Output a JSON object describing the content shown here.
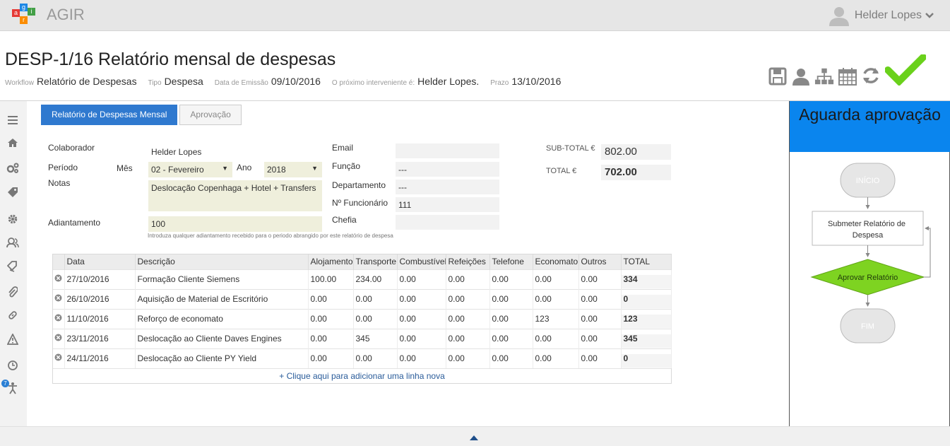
{
  "app": {
    "name": "AGIR",
    "logo_letters": [
      "a",
      "g",
      "i",
      "r"
    ]
  },
  "user": {
    "name": "Helder Lopes"
  },
  "document": {
    "title": "DESP-1/16 Relatório mensal de despesas",
    "meta": {
      "workflow_label": "Workflow",
      "workflow_value": "Relatório de Despesas",
      "tipo_label": "Tipo",
      "tipo_value": "Despesa",
      "emissao_label": "Data de Emissão",
      "emissao_value": "09/10/2016",
      "proximo_label": "O próximo interveniente é:",
      "proximo_value": "Helder Lopes.",
      "prazo_label": "Prazo",
      "prazo_value": "13/10/2016"
    }
  },
  "toolbar": {
    "icons": [
      "save-icon",
      "user-icon",
      "org-chart-icon",
      "calendar-icon",
      "refresh-icon",
      "approve-check-icon"
    ]
  },
  "sidebar": {
    "items": [
      "menu-icon",
      "home-icon",
      "cogs-icon",
      "tag-icon",
      "gear-icon",
      "users-icon",
      "tags-icon",
      "paperclip-icon",
      "link-icon",
      "warning-icon",
      "clock-icon",
      "accessibility-icon"
    ],
    "badge": "7"
  },
  "tabs": [
    {
      "label": "Relatório de Despesas Mensal",
      "active": true
    },
    {
      "label": "Aprovação",
      "active": false
    }
  ],
  "form": {
    "colaborador_label": "Colaborador",
    "colaborador_value": "Helder Lopes",
    "periodo_label": "Período",
    "mes_label": "Mês",
    "mes_value": "02 - Fevereiro",
    "ano_label": "Ano",
    "ano_value": "2018",
    "notas_label": "Notas",
    "notas_value": "Deslocação Copenhaga + Hotel + Transfers",
    "adiantamento_label": "Adiantamento",
    "adiantamento_value": "100",
    "adiantamento_hint": "Introduza qualquer adiantamento recebido para o periodo abrangido por este relatório de despesa",
    "email_label": "Email",
    "email_value": "",
    "funcao_label": "Função",
    "funcao_value": "---",
    "departamento_label": "Departamento",
    "departamento_value": "---",
    "funcionario_label": "Nº Funcionário",
    "funcionario_value": "111",
    "chefia_label": "Chefia",
    "chefia_value": ""
  },
  "totals": {
    "subtotal_label": "SUB-TOTAL €",
    "subtotal_value": "802.00",
    "total_label": "TOTAL €",
    "total_value": "702.00"
  },
  "expenses": {
    "columns": [
      "Data",
      "Descrição",
      "Alojamento",
      "Transporte",
      "Combustível",
      "Refeições",
      "Telefone",
      "Economato",
      "Outros",
      "TOTAL"
    ],
    "rows": [
      [
        "27/10/2016",
        "Formação Cliente Siemens",
        "100.00",
        "234.00",
        "0.00",
        "0.00",
        "0.00",
        "0.00",
        "0.00",
        "334"
      ],
      [
        "26/10/2016",
        "Aquisição de Material de Escritório",
        "0.00",
        "0.00",
        "0.00",
        "0.00",
        "0.00",
        "0.00",
        "0.00",
        "0"
      ],
      [
        "11/10/2016",
        "Reforço de economato",
        "0.00",
        "0.00",
        "0.00",
        "0.00",
        "0.00",
        "123",
        "0.00",
        "123"
      ],
      [
        "23/11/2016",
        "Deslocação ao Cliente Daves Engines",
        "0.00",
        "345",
        "0.00",
        "0.00",
        "0.00",
        "0.00",
        "0.00",
        "345"
      ],
      [
        "24/11/2016",
        "Deslocação ao Cliente PY Yield",
        "0.00",
        "0.00",
        "0.00",
        "0.00",
        "0.00",
        "0.00",
        "0.00",
        "0"
      ]
    ],
    "add_row_label": "+ Clique aqui para adicionar uma linha nova"
  },
  "workflow_panel": {
    "status": "Aguarda aprovação",
    "nodes": {
      "start": "INÍCIO",
      "submit": "Submeter Relatório de Despesa",
      "approve": "Aprovar Relatório",
      "end": "FIM"
    },
    "colors": {
      "status_bg": "#0a85ee",
      "approve_fill": "#7ed321",
      "terminal_fill": "#e6e6e6"
    }
  }
}
